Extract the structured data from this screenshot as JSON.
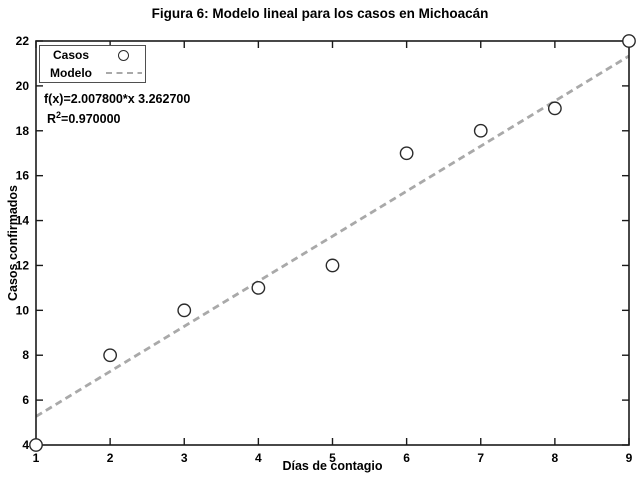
{
  "annotation": {
    "equation": "f(x)=2.007800*x 3.262700",
    "r2_base": "R",
    "r2_sup": "2",
    "r2_value": "=0.970000"
  },
  "colors": {
    "axis": "#1a1a1a",
    "marker_edge": "#2b2b2b",
    "model_line": "#a9a9a9",
    "background": "#ffffff"
  },
  "chart_data": {
    "type": "scatter",
    "title": "Figura 6: Modelo lineal para los casos en Michoacán",
    "xlabel": "Días de contagio",
    "ylabel": "Casos confirmados",
    "xlim": [
      1,
      9
    ],
    "ylim": [
      4,
      22
    ],
    "xticks": [
      1,
      2,
      3,
      4,
      5,
      6,
      7,
      8,
      9
    ],
    "yticks": [
      4,
      6,
      8,
      10,
      12,
      14,
      16,
      18,
      20,
      22
    ],
    "grid": false,
    "legend_position": "top-left",
    "series": [
      {
        "name": "Casos",
        "type": "scatter",
        "marker": "circle",
        "x": [
          1,
          2,
          3,
          4,
          5,
          6,
          7,
          8,
          9
        ],
        "y": [
          4,
          8,
          10,
          11,
          12,
          17,
          18,
          19,
          22
        ]
      },
      {
        "name": "Modelo",
        "type": "line",
        "style": "dashed",
        "model": {
          "slope": 2.0078,
          "intercept": 3.2627
        },
        "x_range": [
          1,
          9
        ]
      }
    ],
    "fit": {
      "r_squared": 0.97
    }
  }
}
